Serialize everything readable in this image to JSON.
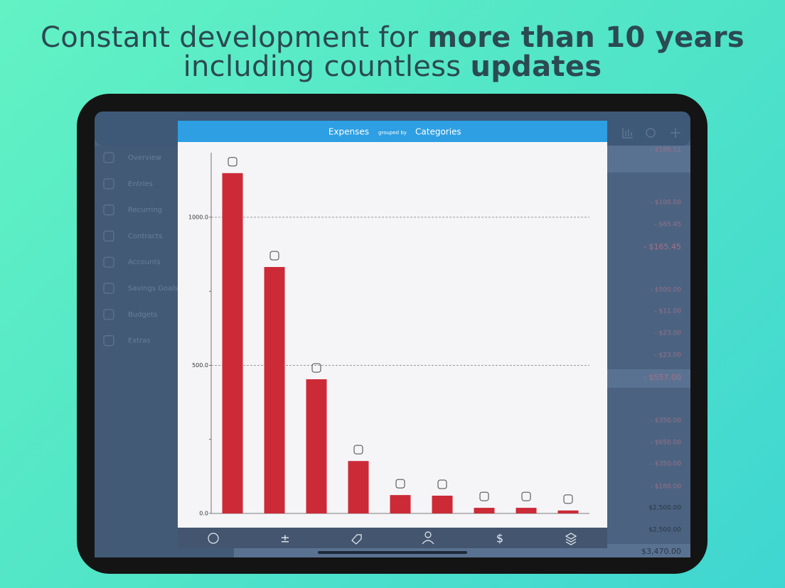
{
  "headline": {
    "line1": {
      "regular": "Constant development for",
      "bold": "more than 10 years"
    },
    "line2": {
      "regular": "including countless",
      "bold": "updates"
    }
  },
  "sidebar": [
    "Overview",
    "Entries",
    "Recurring",
    "Contracts",
    "Accounts",
    "Savings Goals",
    "Budgets",
    "Extras"
  ],
  "background_amounts": [
    {
      "text": "- $186.11",
      "kind": "neg"
    },
    {
      "text": "- $100.00",
      "kind": "neg"
    },
    {
      "text": "- $65.45",
      "kind": "neg"
    },
    {
      "text": "- $165.45",
      "kind": "neg-total"
    },
    {
      "text": "- $500.00",
      "kind": "neg"
    },
    {
      "text": "- $11.00",
      "kind": "neg"
    },
    {
      "text": "- $23.00",
      "kind": "neg"
    },
    {
      "text": "- $23.00",
      "kind": "neg"
    },
    {
      "text": "- $557.00",
      "kind": "neg-total"
    },
    {
      "text": "- $350.00",
      "kind": "neg"
    },
    {
      "text": "- $650.00",
      "kind": "neg"
    },
    {
      "text": "- $350.00",
      "kind": "neg"
    },
    {
      "text": "- $180.00",
      "kind": "neg"
    },
    {
      "text": "$2,500.00",
      "kind": "pos"
    },
    {
      "text": "$2,500.00",
      "kind": "pos"
    },
    {
      "text": "$3,470.00",
      "kind": "pos-total"
    }
  ],
  "modal": {
    "left": "Expenses",
    "middle": "grouped by",
    "right": "Categories"
  },
  "toolbar": {
    "plus_minus": "±",
    "dollar": "$"
  },
  "chart_data": {
    "type": "bar",
    "values": [
      1149,
      832,
      453,
      177,
      62,
      60,
      19,
      19,
      10
    ],
    "color": "#cc2a37",
    "ylim": [
      0,
      1218
    ],
    "yticks": [
      {
        "value": 0,
        "label": "0.0"
      },
      {
        "value": 500,
        "label": "500.0"
      },
      {
        "value": 1000,
        "label": "1000.0"
      }
    ],
    "minor_yticks": [
      250,
      750
    ],
    "grid": true
  }
}
